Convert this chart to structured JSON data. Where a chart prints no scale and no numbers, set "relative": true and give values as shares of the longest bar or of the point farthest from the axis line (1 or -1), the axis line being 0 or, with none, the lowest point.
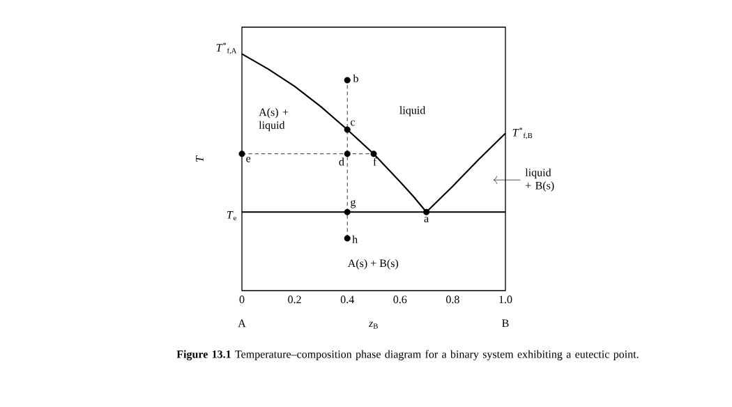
{
  "chart_data": {
    "type": "line",
    "relative": true,
    "xlabel": "*z*$_{B}$",
    "ylabel": "*T*",
    "xlim": [
      0,
      1
    ],
    "xticks": [
      0,
      0.2,
      0.4,
      0.6,
      0.8,
      {
        "value": 1,
        "label": "1.0"
      }
    ],
    "grid": false,
    "series": [
      {
        "color": "#000000",
        "line_style": "solid",
        "marker": "none",
        "x": [
          0,
          0.1,
          0.2,
          0.3,
          0.4,
          0.5,
          0.6,
          0.65,
          0.7
        ],
        "values": [
          1,
          0.936,
          0.863,
          0.777,
          0.68,
          0.578,
          0.46,
          0.399,
          0.332
        ]
      },
      {
        "color": "#000000",
        "line_style": "solid",
        "marker": "none",
        "x": [
          0.7,
          0.8,
          0.9,
          1
        ],
        "values": [
          0.332,
          0.441,
          0.556,
          0.665
        ]
      },
      {
        "color": "#000000",
        "line_style": "solid",
        "marker": "none",
        "x": [
          0,
          1
        ],
        "values": [
          0.332,
          0.332
        ]
      },
      {
        "color": "#000000",
        "line_style": "dashed",
        "marker": "none",
        "x": [
          0.4,
          0.4
        ],
        "values": [
          0.221,
          0.889
        ]
      },
      {
        "color": "#000000",
        "line_style": "dashed",
        "marker": "none",
        "x": [
          0,
          0.5
        ],
        "values": [
          0.578,
          0.578
        ]
      },
      {
        "type": "scatter",
        "color": "#000000",
        "marker": "circle",
        "x": [
          0.4,
          0.4,
          0.4,
          0,
          0.5,
          0.4,
          0.4,
          0.7
        ],
        "values": [
          0.889,
          0.68,
          0.578,
          0.578,
          0.578,
          0.332,
          0.221,
          0.332
        ]
      }
    ],
    "annotations": [
      {
        "text": "*T*$^{*}$$_{f,A}$",
        "x": 0,
        "y": 1
      },
      {
        "text": "*T*$^{*}$$_{f,B}$",
        "x": 1,
        "y": 0.665
      },
      {
        "text": "*T*$_{e}$",
        "x": 0,
        "y": 0.332
      },
      {
        "text": "b",
        "x": 0.4,
        "y": 0.889
      },
      {
        "text": "c",
        "x": 0.4,
        "y": 0.68
      },
      {
        "text": "d",
        "x": 0.4,
        "y": 0.578
      },
      {
        "text": "e",
        "x": 0,
        "y": 0.578
      },
      {
        "text": "f",
        "x": 0.5,
        "y": 0.578
      },
      {
        "text": "g",
        "x": 0.4,
        "y": 0.332
      },
      {
        "text": "h",
        "x": 0.4,
        "y": 0.221
      },
      {
        "text": "a",
        "x": 0.7,
        "y": 0.332
      },
      "A(s) + liquid",
      "liquid",
      "A(s) + B(s)",
      "liquid + B(s)",
      "A",
      "B",
      "**Figure 13.1** Temperature–composition phase diagram for a binary system exhibiting a eutectic point."
    ]
  }
}
